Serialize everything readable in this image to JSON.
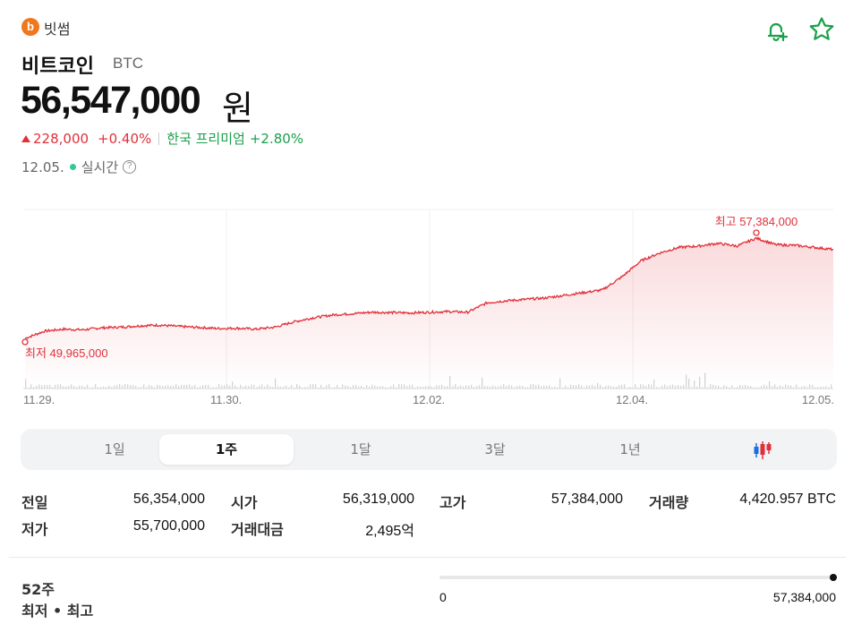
{
  "header": {
    "exchange_logo_letter": "b",
    "exchange_name": "빗썸",
    "coin_name": "비트코인",
    "coin_symbol": "BTC",
    "price": "56,547,000",
    "price_unit": "원",
    "change_amount": "228,000",
    "change_percent": "+0.40%",
    "premium_label": "한국 프리미엄",
    "premium_value": "+2.80%",
    "date": "12.05.",
    "live_label": "실시간",
    "help_glyph": "?"
  },
  "icons": {
    "bell": "bell-plus-icon",
    "star": "star-icon",
    "help": "question-icon",
    "candle": "candlestick-icon"
  },
  "colors": {
    "up": "#e0313b",
    "down": "#1a6fdf",
    "premium": "#19a04b",
    "line": "#e0313b"
  },
  "chart_data": {
    "type": "area",
    "x_ticks": [
      "11.29.",
      "11.30.",
      "12.02.",
      "12.04.",
      "12.05."
    ],
    "high_label": "최고 57,384,000",
    "low_label": "최저 49,965,000",
    "high": 57384000,
    "low": 49965000,
    "values": [
      49965000,
      50500000,
      50650000,
      50600000,
      50750000,
      50800000,
      50900000,
      50950000,
      50850000,
      50780000,
      50700000,
      50720000,
      50650000,
      50800000,
      51200000,
      51500000,
      51700000,
      51800000,
      51900000,
      51880000,
      51850000,
      51900000,
      51950000,
      51900000,
      52600000,
      52750000,
      52850000,
      52950000,
      53150000,
      53350000,
      53550000,
      54500000,
      55700000,
      56300000,
      56700000,
      56800000,
      57000000,
      56800000,
      57384000,
      56900000,
      56850000,
      56700000,
      56547000
    ]
  },
  "periods": {
    "items": [
      "1일",
      "1주",
      "1달",
      "3달",
      "1년"
    ],
    "active_index": 1
  },
  "stats": {
    "prev_close_label": "전일",
    "prev_close_value": "56,354,000",
    "open_label": "시가",
    "open_value": "56,319,000",
    "high_label": "고가",
    "high_value": "57,384,000",
    "volume_label": "거래량",
    "volume_value": "4,420.957 BTC",
    "low_label": "저가",
    "low_value": "55,700,000",
    "turnover_label": "거래대금",
    "turnover_value": "2,495",
    "turnover_unit": "억"
  },
  "week52": {
    "label_line1": "52주",
    "label_line2": "최저 • 최고",
    "min_value": "0",
    "max_value": "57,384,000",
    "position": 1.0
  }
}
